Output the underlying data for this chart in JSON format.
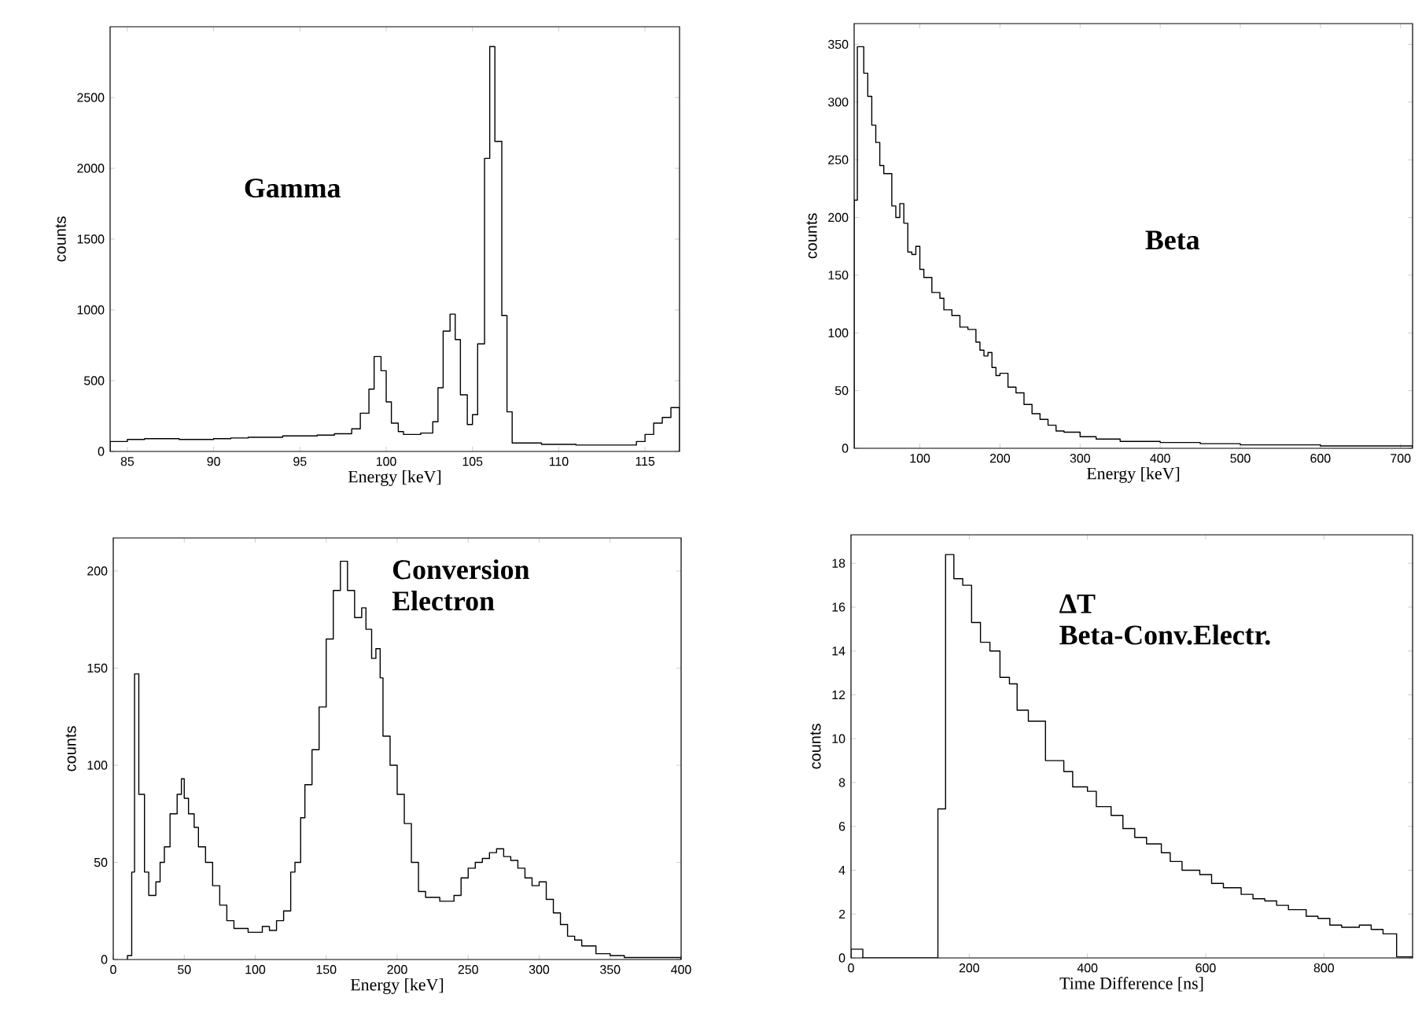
{
  "chart_data": [
    {
      "type": "histogram",
      "title": "Gamma",
      "xlabel": "Energy [keV]",
      "ylabel": "counts",
      "color": "#000000",
      "bins": [
        84,
        85,
        86,
        87,
        88,
        89,
        90,
        91,
        92,
        93,
        94,
        95,
        96,
        97,
        98,
        98.5,
        99,
        99.3,
        99.7,
        100,
        100.3,
        100.7,
        101,
        102,
        102.7,
        103,
        103.3,
        103.7,
        104,
        104.3,
        104.7,
        105,
        105.3,
        105.7,
        106,
        106.3,
        106.7,
        107,
        107.3,
        107.7,
        109,
        111,
        113,
        114.5,
        115,
        115.5,
        116,
        116.5,
        117
      ],
      "values": [
        70,
        85,
        90,
        90,
        85,
        85,
        90,
        95,
        100,
        100,
        110,
        110,
        115,
        125,
        160,
        270,
        440,
        670,
        570,
        350,
        200,
        140,
        120,
        130,
        210,
        450,
        850,
        970,
        790,
        400,
        190,
        260,
        760,
        2070,
        2860,
        2190,
        960,
        280,
        60,
        60,
        50,
        45,
        45,
        70,
        120,
        200,
        240,
        310
      ],
      "xlim": [
        84,
        117
      ],
      "ylim": [
        0,
        3000
      ],
      "xticks": [
        85,
        90,
        95,
        100,
        105,
        110,
        115
      ],
      "yticks": [
        0,
        500,
        1000,
        1500,
        2000,
        2500
      ]
    },
    {
      "type": "histogram",
      "title": "Beta",
      "xlabel": "Energy [keV]",
      "ylabel": "counts",
      "color": "#000000",
      "bins": [
        18,
        22,
        30,
        35,
        40,
        45,
        50,
        55,
        65,
        70,
        75,
        80,
        85,
        90,
        95,
        100,
        105,
        115,
        125,
        130,
        140,
        150,
        160,
        170,
        175,
        180,
        185,
        190,
        195,
        200,
        210,
        220,
        230,
        240,
        250,
        260,
        270,
        280,
        300,
        320,
        350,
        400,
        450,
        500,
        600,
        715
      ],
      "values": [
        215,
        348,
        325,
        305,
        280,
        265,
        245,
        238,
        210,
        200,
        212,
        195,
        170,
        168,
        175,
        155,
        148,
        135,
        130,
        120,
        115,
        105,
        103,
        92,
        85,
        80,
        83,
        70,
        63,
        65,
        53,
        48,
        38,
        30,
        25,
        20,
        15,
        14,
        10,
        8,
        6,
        5,
        4,
        3,
        2
      ],
      "xlim": [
        18,
        715
      ],
      "ylim": [
        0,
        368
      ],
      "xticks": [
        100,
        200,
        300,
        400,
        500,
        600,
        700
      ],
      "yticks": [
        0,
        50,
        100,
        150,
        200,
        250,
        300,
        350
      ]
    },
    {
      "type": "histogram",
      "title": "Conversion Electron",
      "xlabel": "Energy [keV]",
      "ylabel": "counts",
      "color": "#000000",
      "bins": [
        10,
        13,
        15,
        18,
        22,
        25,
        30,
        33,
        36,
        40,
        45,
        48,
        50,
        53,
        57,
        60,
        65,
        70,
        75,
        80,
        85,
        95,
        105,
        110,
        115,
        120,
        125,
        128,
        132,
        135,
        140,
        145,
        150,
        155,
        160,
        165,
        170,
        175,
        178,
        182,
        185,
        188,
        190,
        195,
        200,
        205,
        210,
        215,
        220,
        230,
        240,
        245,
        250,
        255,
        260,
        265,
        270,
        275,
        280,
        285,
        290,
        295,
        300,
        305,
        310,
        315,
        320,
        325,
        330,
        340,
        350,
        360,
        400
      ],
      "values": [
        2,
        45,
        147,
        85,
        45,
        33,
        40,
        50,
        58,
        75,
        85,
        93,
        83,
        75,
        68,
        58,
        50,
        38,
        28,
        20,
        16,
        14,
        17,
        15,
        20,
        25,
        45,
        50,
        73,
        90,
        108,
        130,
        165,
        190,
        205,
        190,
        176,
        181,
        170,
        155,
        160,
        145,
        115,
        100,
        85,
        70,
        50,
        35,
        32,
        30,
        33,
        42,
        47,
        50,
        52,
        55,
        57,
        53,
        51,
        47,
        42,
        38,
        40,
        31,
        24,
        18,
        12,
        10,
        7,
        3,
        2,
        1
      ],
      "xlim": [
        0,
        400
      ],
      "ylim": [
        0,
        217
      ],
      "xticks": [
        0,
        50,
        100,
        150,
        200,
        250,
        300,
        350,
        400
      ],
      "yticks": [
        0,
        50,
        100,
        150,
        200
      ]
    },
    {
      "type": "histogram",
      "title": "ΔT",
      "subtitle": "Beta-Conv.Electr.",
      "xlabel": "Time Difference [ns]",
      "ylabel": "counts",
      "color": "#000000",
      "bins": [
        0,
        20,
        147,
        160,
        174,
        189,
        204,
        219,
        235,
        252,
        268,
        281,
        300,
        329,
        360,
        375,
        400,
        415,
        440,
        460,
        480,
        500,
        525,
        540,
        560,
        590,
        610,
        630,
        660,
        680,
        700,
        720,
        740,
        770,
        790,
        810,
        830,
        860,
        880,
        900,
        923,
        950
      ],
      "values": [
        0.4,
        0,
        6.8,
        18.4,
        17.3,
        17.0,
        15.3,
        14.4,
        14.0,
        12.8,
        12.5,
        11.3,
        10.8,
        9.0,
        8.5,
        7.8,
        7.6,
        6.9,
        6.5,
        5.9,
        5.5,
        5.2,
        4.8,
        4.4,
        4.0,
        3.8,
        3.4,
        3.2,
        2.9,
        2.7,
        2.6,
        2.4,
        2.2,
        1.9,
        1.8,
        1.5,
        1.4,
        1.5,
        1.3,
        1.1,
        0.05
      ],
      "xlim": [
        0,
        950
      ],
      "ylim": [
        0,
        19.3
      ],
      "xticks": [
        0,
        200,
        400,
        600,
        800
      ],
      "yticks": [
        0,
        2,
        4,
        6,
        8,
        10,
        12,
        14,
        16,
        18
      ]
    }
  ]
}
